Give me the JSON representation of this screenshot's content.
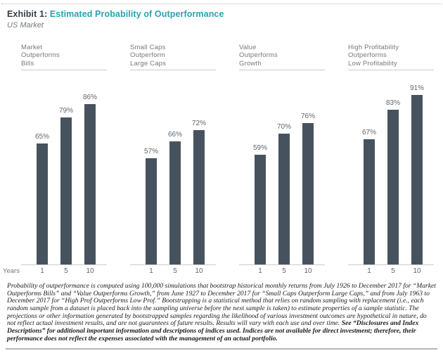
{
  "header": {
    "exhibit_label": "Exhibit 1:",
    "title": "Estimated Probability of Outperformance",
    "subtitle": "US Market"
  },
  "colors": {
    "bar": "#46535F",
    "accent_teal": "#29A3AC",
    "heading_dark": "#333F48",
    "text_gray": "#75787B",
    "label_gray": "#63666A",
    "line_gray": "#C9CACC"
  },
  "chart_data": {
    "type": "bar",
    "title": "Estimated Probability of Outperformance",
    "subtitle": "US Market",
    "x_label": "Years",
    "x": [
      "1",
      "5",
      "10"
    ],
    "unit": "%",
    "ylim": [
      0,
      100
    ],
    "grid": false,
    "legend": false,
    "groups": [
      {
        "title_lines": [
          "Market",
          "Outperforms",
          "Bills"
        ],
        "values": [
          65,
          79,
          86
        ]
      },
      {
        "title_lines": [
          "Small Caps",
          "Outperform",
          "Large Caps"
        ],
        "values": [
          57,
          66,
          72
        ]
      },
      {
        "title_lines": [
          "Value",
          "Outperforms",
          "Growth"
        ],
        "values": [
          59,
          70,
          76
        ]
      },
      {
        "title_lines": [
          "High Profitability",
          "Outperforms",
          "Low Profitability"
        ],
        "values": [
          67,
          83,
          91
        ]
      }
    ]
  },
  "footnote": {
    "regular": "Probability of outperformance is computed using 100,000 simulations that bootstrap historical monthly returns from July 1926 to December 2017 for “Market Outperforms Bills” and “Value Outperforms Growth,” from June 1927 to December 2017 for “Small Caps Outperform Large Caps,” and from July 1963 to December 2017 for “High Prof Outperforms Low Prof.” Bootstrapping is a statistical method that relies on random sampling with replacement (i.e., each random sample from a dataset is placed back into the sampling universe before the next sample is taken) to estimate properties of a sample statistic. The projections or other information generated by bootstrapped samples regarding the likelihood of various investment outcomes are hypothetical in nature, do not reflect actual investment results, and are not guarantees of future results. Results will vary with each use and over time. ",
    "bold": "See “Disclosures and Index Descriptions” for additional important information and descriptions of indices used. Indices are not available for direct investment; therefore, their performance does not reflect the expenses associated with the management of an actual portfolio."
  }
}
